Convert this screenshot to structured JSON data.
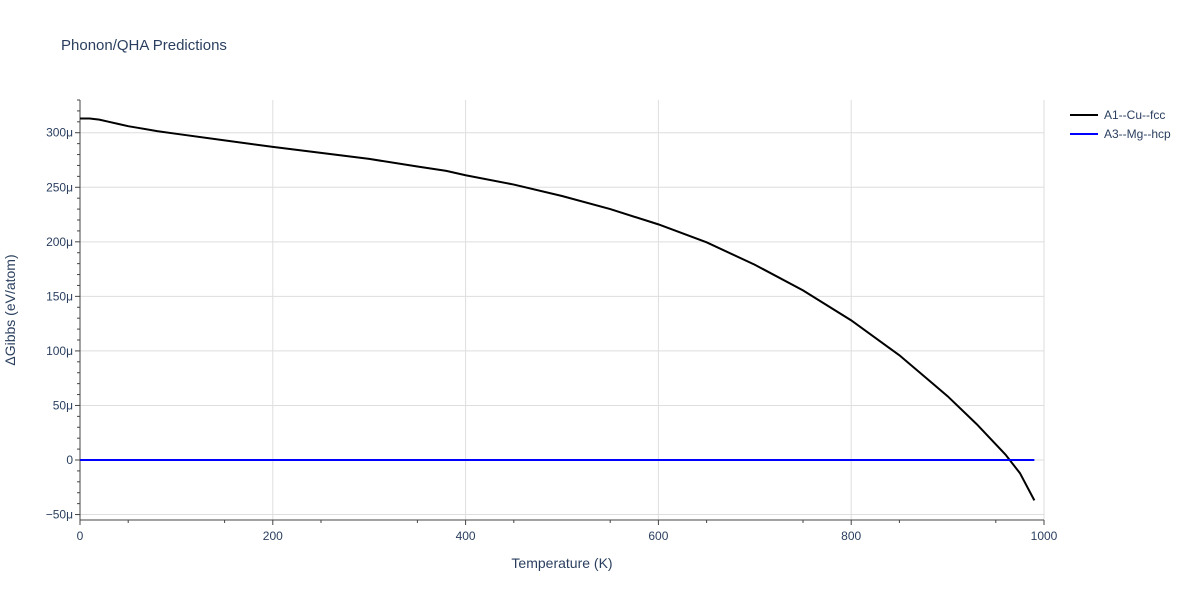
{
  "chart_data": {
    "type": "line",
    "title": "Phonon/QHA Predictions",
    "xlabel": "Temperature (K)",
    "ylabel": "ΔGibbs (eV/atom)",
    "xlim": [
      0,
      1000
    ],
    "ylim": [
      -55,
      330
    ],
    "x_ticks": [
      0,
      200,
      400,
      600,
      800,
      1000
    ],
    "x_tick_labels": [
      "0",
      "200",
      "400",
      "600",
      "800",
      "1000"
    ],
    "y_ticks": [
      -50,
      0,
      50,
      100,
      150,
      200,
      250,
      300
    ],
    "y_tick_labels": [
      "−50μ",
      "0",
      "50μ",
      "100μ",
      "150μ",
      "200μ",
      "250μ",
      "300μ"
    ],
    "y_unit_scale": "micro (μ)",
    "grid": true,
    "legend_position": "top-right",
    "series": [
      {
        "name": "A1--Cu--fcc",
        "color": "#000000",
        "x": [
          0,
          10,
          20,
          30,
          40,
          50,
          60,
          80,
          100,
          150,
          200,
          250,
          300,
          350,
          380,
          400,
          450,
          500,
          550,
          600,
          650,
          700,
          750,
          800,
          850,
          900,
          930,
          960,
          975,
          990
        ],
        "y": [
          313,
          313,
          312,
          310,
          308,
          306,
          304.5,
          301.5,
          299,
          293,
          287,
          281.5,
          276,
          269,
          265,
          261,
          252.5,
          242,
          230,
          216,
          199.5,
          179,
          155.5,
          128,
          96,
          58.5,
          33,
          5,
          -12,
          -37
        ]
      },
      {
        "name": "A3--Mg--hcp",
        "color": "#0000ff",
        "x": [
          0,
          990
        ],
        "y": [
          0,
          0
        ]
      }
    ]
  }
}
